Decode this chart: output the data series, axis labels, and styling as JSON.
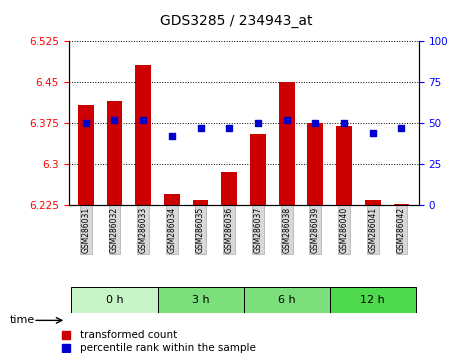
{
  "title": "GDS3285 / 234943_at",
  "samples": [
    "GSM286031",
    "GSM286032",
    "GSM286033",
    "GSM286034",
    "GSM286035",
    "GSM286036",
    "GSM286037",
    "GSM286038",
    "GSM286039",
    "GSM286040",
    "GSM286041",
    "GSM286042"
  ],
  "bar_values": [
    6.408,
    6.415,
    6.48,
    6.245,
    6.235,
    6.285,
    6.355,
    6.45,
    6.375,
    6.37,
    6.235,
    6.228
  ],
  "percentile_values": [
    50,
    52,
    52,
    42,
    47,
    47,
    50,
    52,
    50,
    50,
    44,
    47
  ],
  "bar_color": "#cc0000",
  "percentile_color": "#0000cc",
  "ymin": 6.225,
  "ymax": 6.525,
  "yticks": [
    6.225,
    6.3,
    6.375,
    6.45,
    6.525
  ],
  "y2min": 0,
  "y2max": 100,
  "y2ticks": [
    0,
    25,
    50,
    75,
    100
  ],
  "group_labels": [
    "0 h",
    "3 h",
    "6 h",
    "12 h"
  ],
  "group_starts": [
    0,
    3,
    6,
    9
  ],
  "group_ends": [
    3,
    6,
    9,
    12
  ],
  "group_colors": [
    "#c8f5c8",
    "#7be07b",
    "#7be07b",
    "#4ddb4d"
  ],
  "time_label": "time",
  "legend_bar_label": "transformed count",
  "legend_pct_label": "percentile rank within the sample",
  "base_value": 6.225,
  "bar_width": 0.55
}
